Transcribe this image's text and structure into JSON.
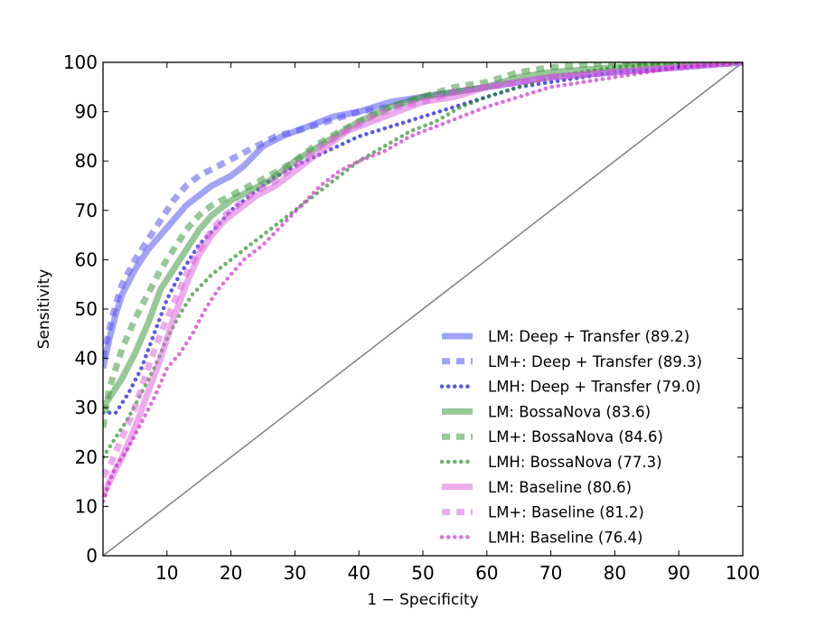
{
  "chart_data": {
    "type": "line",
    "title": "",
    "xlabel": "1 − Specificity",
    "ylabel": "Sensitivity",
    "xlim": [
      0,
      100
    ],
    "ylim": [
      0,
      100
    ],
    "xticks": [
      10,
      20,
      30,
      40,
      50,
      60,
      70,
      80,
      90,
      100
    ],
    "yticks": [
      0,
      10,
      20,
      30,
      40,
      50,
      60,
      70,
      80,
      90,
      100
    ],
    "legend_position": "lower-right",
    "reference_line": {
      "name": "chance",
      "x": [
        0,
        100
      ],
      "y": [
        0,
        100
      ],
      "color": "#808080"
    },
    "series": [
      {
        "name": "LM: Deep + Transfer (89.2)",
        "style": "solid",
        "color": "#5555ee",
        "x": [
          0,
          1,
          2,
          3,
          5,
          7,
          9,
          11,
          13,
          15,
          17,
          20,
          22,
          25,
          28,
          32,
          36,
          40,
          45,
          50,
          55,
          60,
          70,
          80,
          90,
          100
        ],
        "y": [
          38,
          44,
          49,
          53,
          58,
          62,
          65,
          68,
          71,
          73,
          75,
          77,
          79,
          83,
          85,
          87,
          89,
          90,
          92,
          93,
          94,
          95,
          97,
          98,
          99,
          100
        ]
      },
      {
        "name": "LM+: Deep + Transfer (89.3)",
        "style": "dashed",
        "color": "#5555ee",
        "x": [
          0,
          1,
          2,
          3,
          5,
          7,
          9,
          11,
          13,
          15,
          18,
          21,
          24,
          27,
          30,
          35,
          40,
          45,
          50,
          55,
          60,
          70,
          80,
          90,
          100
        ],
        "y": [
          40,
          46,
          51,
          55,
          60,
          64,
          68,
          72,
          75,
          77,
          79,
          81,
          83,
          85,
          86,
          88,
          90,
          91,
          93,
          94,
          95,
          97,
          98,
          99,
          100
        ]
      },
      {
        "name": "LMH: Deep + Transfer (79.0)",
        "style": "dotted",
        "color": "#0000dd",
        "x": [
          0,
          1,
          2,
          4,
          6,
          8,
          10,
          12,
          15,
          18,
          20,
          23,
          26,
          30,
          35,
          40,
          45,
          50,
          55,
          60,
          65,
          70,
          80,
          90,
          100
        ],
        "y": [
          29,
          29,
          29,
          33,
          38,
          45,
          52,
          57,
          63,
          67,
          70,
          73,
          76,
          79,
          82,
          85,
          87,
          89,
          91,
          93,
          95,
          96,
          98,
          99,
          100
        ]
      },
      {
        "name": "LM: BossaNova (83.6)",
        "style": "solid",
        "color": "#449944",
        "x": [
          0,
          1,
          3,
          5,
          7,
          9,
          11,
          13,
          15,
          17,
          20,
          23,
          26,
          30,
          35,
          40,
          45,
          50,
          55,
          60,
          65,
          70,
          80,
          90,
          100
        ],
        "y": [
          30,
          32,
          36,
          41,
          47,
          54,
          58,
          62,
          66,
          69,
          72,
          74,
          76,
          80,
          84,
          88,
          91,
          93,
          94,
          95,
          97,
          98,
          99,
          100,
          100
        ]
      },
      {
        "name": "LM+: BossaNova (84.6)",
        "style": "dashed",
        "color": "#449944",
        "x": [
          0,
          1,
          3,
          5,
          7,
          9,
          11,
          13,
          15,
          17,
          20,
          23,
          26,
          30,
          33,
          37,
          40,
          45,
          50,
          55,
          60,
          65,
          70,
          80,
          90,
          100
        ],
        "y": [
          26,
          34,
          42,
          48,
          53,
          58,
          62,
          66,
          69,
          71,
          73,
          75,
          77,
          80,
          83,
          86,
          88,
          91,
          93,
          95,
          96,
          98,
          99,
          100,
          100,
          100
        ]
      },
      {
        "name": "LMH: BossaNova (77.3)",
        "style": "dotted",
        "color": "#228822",
        "x": [
          0,
          1,
          2,
          4,
          6,
          8,
          10,
          12,
          14,
          17,
          20,
          23,
          26,
          30,
          33,
          36,
          40,
          44,
          48,
          52,
          56,
          60,
          65,
          70,
          80,
          90,
          100
        ],
        "y": [
          20,
          22,
          24,
          28,
          33,
          38,
          44,
          49,
          53,
          57,
          60,
          63,
          66,
          70,
          73,
          76,
          80,
          83,
          86,
          88,
          91,
          93,
          95,
          97,
          99,
          100,
          100
        ]
      },
      {
        "name": "LM: Baseline (80.6)",
        "style": "solid",
        "color": "#dd66dd",
        "x": [
          0,
          1,
          3,
          5,
          7,
          9,
          11,
          13,
          15,
          17,
          19,
          21,
          24,
          27,
          30,
          34,
          38,
          42,
          46,
          50,
          55,
          60,
          70,
          80,
          90,
          100
        ],
        "y": [
          12,
          15,
          20,
          26,
          33,
          40,
          48,
          55,
          61,
          65,
          68,
          70,
          73,
          75,
          78,
          82,
          86,
          88,
          90,
          92,
          93,
          95,
          97,
          98,
          99,
          100
        ]
      },
      {
        "name": "LM+: Baseline (81.2)",
        "style": "dashed",
        "color": "#dd66dd",
        "x": [
          0,
          1,
          3,
          5,
          7,
          9,
          11,
          13,
          15,
          17,
          19,
          21,
          24,
          27,
          30,
          34,
          38,
          42,
          46,
          50,
          55,
          60,
          70,
          80,
          90,
          100
        ],
        "y": [
          16,
          18,
          24,
          30,
          38,
          45,
          51,
          57,
          62,
          66,
          69,
          71,
          74,
          76,
          79,
          83,
          86,
          89,
          91,
          92,
          94,
          95,
          97,
          98,
          99,
          100
        ]
      },
      {
        "name": "LMH: Baseline (76.4)",
        "style": "dotted",
        "color": "#cc22cc",
        "x": [
          0,
          1,
          2,
          4,
          6,
          8,
          10,
          12,
          14,
          16,
          18,
          20,
          22,
          25,
          28,
          31,
          34,
          37,
          40,
          44,
          48,
          52,
          56,
          60,
          65,
          70,
          80,
          90,
          100
        ],
        "y": [
          11,
          15,
          18,
          22,
          27,
          32,
          38,
          41,
          45,
          50,
          54,
          57,
          60,
          63,
          67,
          71,
          75,
          78,
          80,
          82,
          85,
          87,
          89,
          91,
          93,
          95,
          97,
          99,
          100
        ]
      }
    ]
  }
}
